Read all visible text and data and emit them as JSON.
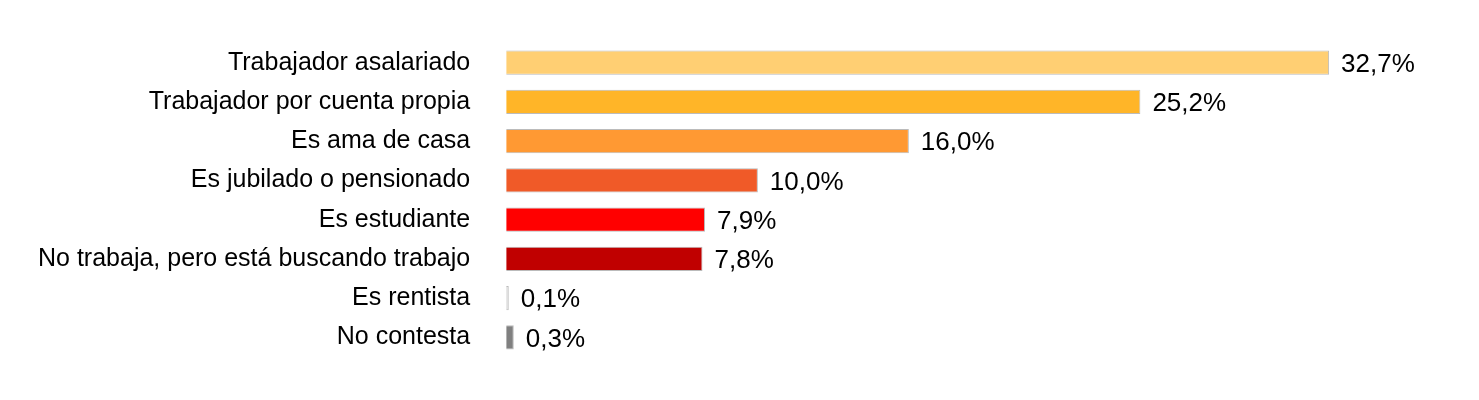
{
  "chart_data": {
    "type": "bar",
    "orientation": "horizontal",
    "categories": [
      "Trabajador asalariado",
      "Trabajador por cuenta propia",
      "Es ama de casa",
      "Es jubilado o pensionado",
      "Es estudiante",
      "No trabaja, pero está buscando trabajo",
      "Es rentista",
      "No contesta"
    ],
    "values": [
      32.7,
      25.2,
      16.0,
      10.0,
      7.9,
      7.8,
      0.1,
      0.3
    ],
    "colors": [
      "#ffcf73",
      "#ffb528",
      "#ff9933",
      "#f05a28",
      "#ff0000",
      "#c00000",
      "#d9d9d9",
      "#808080"
    ],
    "value_labels": [
      "32,7%",
      "25,2%",
      "16,0%",
      "10,0%",
      "7,9%",
      "7,8%",
      "0,1%",
      "0,3%"
    ],
    "data_labels": false
  }
}
